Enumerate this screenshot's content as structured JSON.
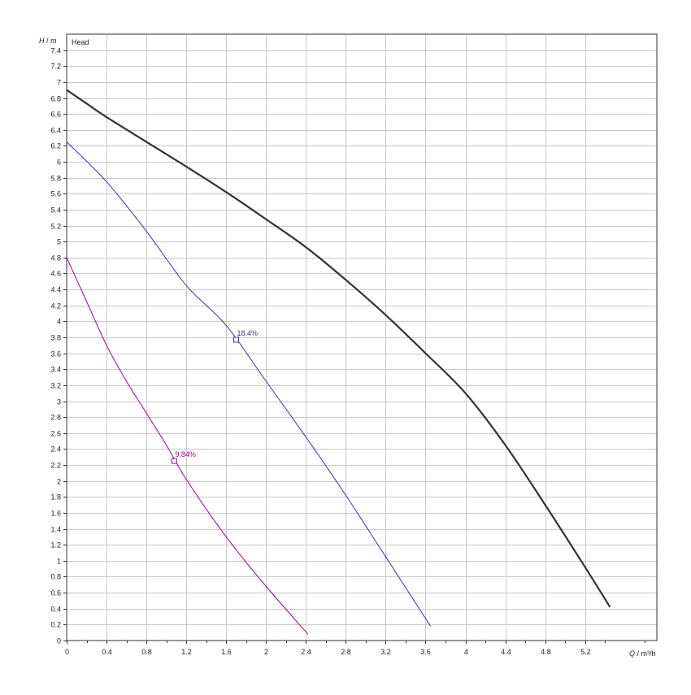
{
  "chart_data": {
    "type": "line",
    "title": "Head",
    "ylabel": {
      "symbol": "H",
      "unit": " / m"
    },
    "xlabel": {
      "symbol": "Q",
      "unit": " / m³/h"
    },
    "xlim": [
      0,
      5.92
    ],
    "ylim": [
      0,
      7.6
    ],
    "x_ticks": [
      "0",
      "0.4",
      "0.8",
      "1.2",
      "1.6",
      "2",
      "2.4",
      "2.8",
      "3.2",
      "3.6",
      "4",
      "4.4",
      "4.8",
      "5.2"
    ],
    "y_ticks": [
      "0",
      "0.2",
      "0.4",
      "0.6",
      "0.8",
      "1",
      "1.2",
      "1.4",
      "1.6",
      "1.8",
      "2",
      "2.2",
      "2.4",
      "2.6",
      "2.8",
      "3",
      "3.2",
      "3.4",
      "3.6",
      "3.8",
      "4",
      "4.2",
      "4.4",
      "4.6",
      "4.8",
      "5",
      "5.2",
      "5.4",
      "5.6",
      "5.8",
      "6",
      "6.2",
      "6.4",
      "6.6",
      "6.8",
      "7",
      "7.2",
      "7.4"
    ],
    "grid": true,
    "series": [
      {
        "color": "#333333",
        "x": [
          0,
          0.2,
          0.4,
          0.8,
          1.2,
          1.6,
          2.0,
          2.4,
          2.8,
          3.2,
          3.6,
          4.0,
          4.4,
          4.8,
          5.2,
          5.45
        ],
        "y": [
          6.9,
          6.73,
          6.56,
          6.25,
          5.94,
          5.62,
          5.28,
          4.93,
          4.52,
          4.08,
          3.6,
          3.1,
          2.45,
          1.7,
          0.92,
          0.42
        ]
      },
      {
        "color": "#3333aa",
        "point_label": "18.4%",
        "marker": {
          "x": 1.7,
          "y": 3.77
        },
        "x": [
          0,
          0.4,
          0.8,
          1.2,
          1.6,
          2.0,
          2.4,
          2.8,
          3.2,
          3.65
        ],
        "y": [
          6.25,
          5.75,
          5.13,
          4.45,
          3.95,
          3.25,
          2.55,
          1.82,
          1.05,
          0.18
        ]
      },
      {
        "color": "#990099",
        "point_label": "9.84%",
        "marker": {
          "x": 1.08,
          "y": 2.25
        },
        "x": [
          0,
          0.2,
          0.4,
          0.6,
          0.8,
          1.0,
          1.2,
          1.6,
          2.0,
          2.42
        ],
        "y": [
          4.8,
          4.25,
          3.7,
          3.25,
          2.85,
          2.45,
          2.02,
          1.3,
          0.68,
          0.08
        ]
      }
    ]
  }
}
